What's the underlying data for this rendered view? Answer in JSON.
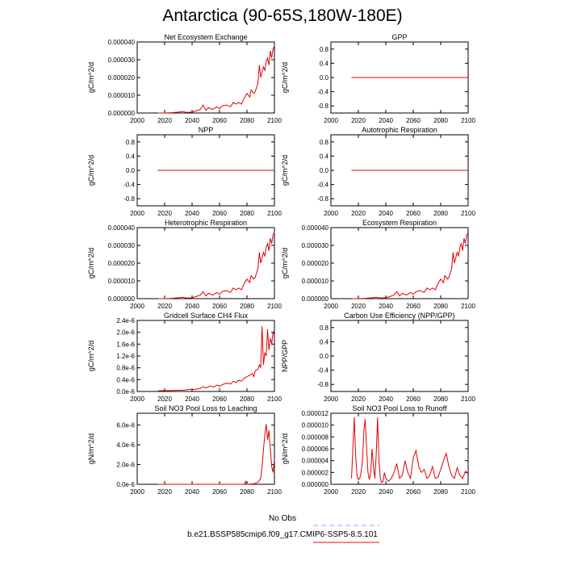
{
  "page_title": "Antarctica (90-65S,180W-180E)",
  "legend": {
    "entries": [
      {
        "label": "No Obs",
        "color": "#9999ff",
        "dash": true
      },
      {
        "label": "b.e21.BSSP585cmip6.f09_g17.CMIP6-SSP5-8.5.101",
        "color": "#ff0000",
        "dash": false
      }
    ]
  },
  "colors": {
    "series": "#e00000",
    "axis": "#000000"
  },
  "chart_data": [
    {
      "type": "line",
      "title": "Net Ecosystem Exchange",
      "ylabel": "gC/m^2/d",
      "xlim": [
        2000,
        2100
      ],
      "ylim": [
        0,
        4e-05
      ],
      "xticks": [
        2000,
        2020,
        2040,
        2060,
        2080,
        2100
      ],
      "yticks": [
        0,
        1e-05,
        2e-05,
        3e-05,
        4e-05
      ],
      "ytick_labels": [
        "0.000000",
        "0.000010",
        "0.000020",
        "0.000030",
        "0.000040"
      ],
      "series": [
        {
          "x": [
            2015,
            2020,
            2025,
            2030,
            2033,
            2036,
            2040,
            2043,
            2046,
            2048,
            2050,
            2052,
            2055,
            2058,
            2060,
            2062,
            2065,
            2068,
            2070,
            2072,
            2074,
            2076,
            2078,
            2080,
            2082,
            2083,
            2085,
            2086,
            2088,
            2089,
            2090,
            2091,
            2092,
            2093,
            2094,
            2095,
            2096,
            2097,
            2098,
            2099,
            2100
          ],
          "y": [
            0,
            0,
            2e-07,
            5e-07,
            8e-07,
            3e-07,
            5e-07,
            1.2e-06,
            2e-06,
            4.5e-06,
            1.5e-06,
            3e-06,
            2e-06,
            3.5e-06,
            2.5e-06,
            4e-06,
            4.5e-06,
            3.5e-06,
            6e-06,
            5e-06,
            6e-06,
            5e-06,
            8.5e-06,
            1.1e-05,
            9e-06,
            1.3e-05,
            1.1e-05,
            1.2e-05,
            1.7e-05,
            2.7e-05,
            2e-05,
            2.3e-05,
            2.6e-05,
            2.4e-05,
            2.9e-05,
            3.1e-05,
            2.7e-05,
            3.5e-05,
            3.1e-05,
            3.6e-05,
            3.8e-05
          ]
        }
      ]
    },
    {
      "type": "line",
      "title": "GPP",
      "ylabel": "gC/m^2/d",
      "xlim": [
        2000,
        2100
      ],
      "ylim": [
        -1,
        1
      ],
      "xticks": [
        2000,
        2020,
        2040,
        2060,
        2080,
        2100
      ],
      "yticks": [
        -0.8,
        -0.4,
        0,
        0.4,
        0.8
      ],
      "ytick_labels": [
        "-0.8",
        "-0.4",
        "0.0",
        "0.4",
        "0.8"
      ],
      "series": [
        {
          "x": [
            2015,
            2100
          ],
          "y": [
            0,
            0
          ]
        }
      ]
    },
    {
      "type": "line",
      "title": "NPP",
      "ylabel": "gC/m^2/d",
      "xlim": [
        2000,
        2100
      ],
      "ylim": [
        -1,
        1
      ],
      "xticks": [
        2000,
        2020,
        2040,
        2060,
        2080,
        2100
      ],
      "yticks": [
        -0.8,
        -0.4,
        0,
        0.4,
        0.8
      ],
      "ytick_labels": [
        "-0.8",
        "-0.4",
        "0.0",
        "0.4",
        "0.8"
      ],
      "series": [
        {
          "x": [
            2015,
            2100
          ],
          "y": [
            0,
            0
          ]
        }
      ]
    },
    {
      "type": "line",
      "title": "Autotrophic Respiration",
      "ylabel": "gC/m^2/d",
      "xlim": [
        2000,
        2100
      ],
      "ylim": [
        -1,
        1
      ],
      "xticks": [
        2000,
        2020,
        2040,
        2060,
        2080,
        2100
      ],
      "yticks": [
        -0.8,
        -0.4,
        0,
        0.4,
        0.8
      ],
      "ytick_labels": [
        "-0.8",
        "-0.4",
        "0.0",
        "0.4",
        "0.8"
      ],
      "series": [
        {
          "x": [
            2015,
            2100
          ],
          "y": [
            0,
            0
          ]
        }
      ]
    },
    {
      "type": "line",
      "title": "Heterotrophic Respiration",
      "ylabel": "gC/m^2/d",
      "xlim": [
        2000,
        2100
      ],
      "ylim": [
        0,
        4e-05
      ],
      "xticks": [
        2000,
        2020,
        2040,
        2060,
        2080,
        2100
      ],
      "yticks": [
        0,
        1e-05,
        2e-05,
        3e-05,
        4e-05
      ],
      "ytick_labels": [
        "0.000000",
        "0.000010",
        "0.000020",
        "0.000030",
        "0.000040"
      ],
      "series": [
        {
          "x": [
            2015,
            2020,
            2025,
            2030,
            2033,
            2036,
            2040,
            2043,
            2046,
            2048,
            2050,
            2052,
            2055,
            2058,
            2060,
            2062,
            2065,
            2068,
            2070,
            2072,
            2074,
            2076,
            2078,
            2080,
            2082,
            2083,
            2085,
            2086,
            2088,
            2089,
            2090,
            2091,
            2092,
            2093,
            2094,
            2095,
            2096,
            2097,
            2098,
            2099,
            2100
          ],
          "y": [
            0,
            0,
            2e-07,
            5e-07,
            8e-07,
            3e-07,
            5e-07,
            1.2e-06,
            2e-06,
            4e-06,
            1.5e-06,
            3e-06,
            2e-06,
            3.5e-06,
            2.5e-06,
            4e-06,
            4.5e-06,
            3.5e-06,
            6e-06,
            5e-06,
            6e-06,
            5e-06,
            8.5e-06,
            1.1e-05,
            9e-06,
            1.3e-05,
            1.1e-05,
            1.2e-05,
            1.7e-05,
            2.6e-05,
            2e-05,
            2.3e-05,
            2.6e-05,
            2.4e-05,
            2.9e-05,
            3.1e-05,
            2.7e-05,
            3.4e-05,
            3.1e-05,
            3.6e-05,
            3.7e-05
          ]
        }
      ]
    },
    {
      "type": "line",
      "title": "Ecosystem Respiration",
      "ylabel": "gC/m^2/d",
      "xlim": [
        2000,
        2100
      ],
      "ylim": [
        0,
        4e-05
      ],
      "xticks": [
        2000,
        2020,
        2040,
        2060,
        2080,
        2100
      ],
      "yticks": [
        0,
        1e-05,
        2e-05,
        3e-05,
        4e-05
      ],
      "ytick_labels": [
        "0.000000",
        "0.000010",
        "0.000020",
        "0.000030",
        "0.000040"
      ],
      "series": [
        {
          "x": [
            2015,
            2020,
            2025,
            2030,
            2033,
            2036,
            2040,
            2043,
            2046,
            2048,
            2050,
            2052,
            2055,
            2058,
            2060,
            2062,
            2065,
            2068,
            2070,
            2072,
            2074,
            2076,
            2078,
            2080,
            2082,
            2083,
            2085,
            2086,
            2088,
            2089,
            2090,
            2091,
            2092,
            2093,
            2094,
            2095,
            2096,
            2097,
            2098,
            2099,
            2100
          ],
          "y": [
            0,
            0,
            2e-07,
            5e-07,
            8e-07,
            3e-07,
            5e-07,
            1.2e-06,
            2e-06,
            4e-06,
            1.5e-06,
            3e-06,
            2e-06,
            3.5e-06,
            2.5e-06,
            4e-06,
            4.5e-06,
            3.5e-06,
            6e-06,
            5e-06,
            6e-06,
            5e-06,
            8.5e-06,
            1.1e-05,
            9e-06,
            1.3e-05,
            1.1e-05,
            1.2e-05,
            1.7e-05,
            2.6e-05,
            2e-05,
            2.3e-05,
            2.6e-05,
            2.4e-05,
            2.9e-05,
            3.1e-05,
            2.7e-05,
            3.4e-05,
            3.1e-05,
            3.6e-05,
            3.7e-05
          ]
        }
      ]
    },
    {
      "type": "line",
      "title": "Gridcell Surface CH4 Flux",
      "ylabel": "gC/m^2/d",
      "xlim": [
        2000,
        2100
      ],
      "ylim": [
        0,
        2.4e-06
      ],
      "xticks": [
        2000,
        2020,
        2040,
        2060,
        2080,
        2100
      ],
      "yticks": [
        0,
        4e-07,
        8e-07,
        1.2e-06,
        1.6e-06,
        2e-06,
        2.4e-06
      ],
      "ytick_labels": [
        "0.0e-6",
        "0.4e-6",
        "0.8e-6",
        "1.2e-6",
        "1.6e-6",
        "2.0e-6",
        "2.4e-6"
      ],
      "series": [
        {
          "x": [
            2015,
            2020,
            2025,
            2030,
            2035,
            2038,
            2040,
            2043,
            2046,
            2048,
            2050,
            2053,
            2056,
            2058,
            2060,
            2063,
            2066,
            2068,
            2070,
            2072,
            2074,
            2076,
            2078,
            2080,
            2082,
            2084,
            2085,
            2086,
            2088,
            2089,
            2090,
            2091,
            2092,
            2093,
            2094,
            2095,
            2096,
            2097,
            2098,
            2099,
            2100
          ],
          "y": [
            2e-08,
            3e-08,
            3e-08,
            4e-08,
            5e-08,
            7e-08,
            6e-08,
            8e-08,
            1e-07,
            1.6e-07,
            1.2e-07,
            1.8e-07,
            1.5e-07,
            2.2e-07,
            1.8e-07,
            2.5e-07,
            2.8e-07,
            2.5e-07,
            3.5e-07,
            3e-07,
            3.8e-07,
            3.5e-07,
            4.5e-07,
            5e-07,
            5.5e-07,
            6e-07,
            5e-07,
            7e-07,
            7.5e-07,
            9e-07,
            8e-07,
            2.2e-06,
            9e-07,
            1.3e-06,
            1.2e-06,
            2.1e-06,
            1.4e-06,
            1.8e-06,
            1.6e-06,
            2e-06,
            1.9e-06
          ]
        }
      ]
    },
    {
      "type": "line",
      "title": "Carbon Use Efficiency (NPP/GPP)",
      "ylabel": "NPP/GPP",
      "xlim": [
        2000,
        2100
      ],
      "ylim": [
        -1,
        1
      ],
      "xticks": [
        2000,
        2020,
        2040,
        2060,
        2080,
        2100
      ],
      "yticks": [
        -0.8,
        -0.4,
        0,
        0.4,
        0.8
      ],
      "ytick_labels": [
        "-0.8",
        "-0.4",
        "0.0",
        "0.4",
        "0.8"
      ],
      "series": []
    },
    {
      "type": "line",
      "title": "Soil NO3 Pool Loss to Leaching",
      "ylabel": "gN/m^2/d",
      "xlim": [
        2000,
        2100
      ],
      "ylim": [
        0,
        7.2e-06
      ],
      "xticks": [
        2000,
        2020,
        2040,
        2060,
        2080,
        2100
      ],
      "yticks": [
        0,
        2e-06,
        4e-06,
        6e-06
      ],
      "ytick_labels": [
        "0.0e-6",
        "2.0e-6",
        "4.0e-6",
        "6.0e-6"
      ],
      "series": [
        {
          "x": [
            2015,
            2030,
            2050,
            2070,
            2078,
            2079,
            2080,
            2085,
            2088,
            2090,
            2091,
            2092,
            2093,
            2094,
            2095,
            2096,
            2097,
            2098,
            2099,
            2100
          ],
          "y": [
            0,
            0,
            0,
            0,
            0,
            3e-07,
            0,
            5e-08,
            2e-07,
            6e-07,
            1.8e-06,
            3.5e-06,
            5e-06,
            6.1e-06,
            4.5e-06,
            5.5e-06,
            3.5e-06,
            1.8e-06,
            1.2e-06,
            2.5e-06
          ]
        }
      ]
    },
    {
      "type": "line",
      "title": "Soil NO3 Pool Loss to Runoff",
      "ylabel": "gN/m^2/d",
      "xlim": [
        2000,
        2100
      ],
      "ylim": [
        0,
        1.2e-05
      ],
      "xticks": [
        2000,
        2020,
        2040,
        2060,
        2080,
        2100
      ],
      "yticks": [
        0,
        2e-06,
        4e-06,
        6e-06,
        8e-06,
        1e-05,
        1.2e-05
      ],
      "ytick_labels": [
        "0.000000",
        "0.000002",
        "0.000004",
        "0.000006",
        "0.000008",
        "0.000010",
        "0.000012"
      ],
      "series": [
        {
          "x": [
            2015,
            2016,
            2017,
            2018,
            2019,
            2020,
            2021,
            2022,
            2023,
            2024,
            2025,
            2026,
            2027,
            2028,
            2029,
            2030,
            2031,
            2032,
            2033,
            2034,
            2035,
            2036,
            2037,
            2038,
            2039,
            2040,
            2042,
            2044,
            2046,
            2048,
            2050,
            2052,
            2054,
            2056,
            2058,
            2060,
            2062,
            2064,
            2066,
            2068,
            2070,
            2072,
            2074,
            2076,
            2078,
            2080,
            2082,
            2084,
            2086,
            2088,
            2090,
            2092,
            2094,
            2096,
            2098,
            2100
          ],
          "y": [
            1e-06,
            6e-06,
            1.13e-05,
            5e-06,
            1.5e-06,
            8e-07,
            1e-06,
            2e-06,
            4e-06,
            9e-06,
            1.1e-05,
            6e-06,
            2e-06,
            8e-07,
            2e-06,
            6e-06,
            3e-06,
            1e-06,
            5e-06,
            1.13e-05,
            4e-06,
            1e-06,
            3e-07,
            5e-07,
            2e-06,
            1e-06,
            5e-07,
            1e-06,
            2e-06,
            3.5e-06,
            1e-06,
            1.5e-06,
            4e-06,
            2e-06,
            1e-06,
            4.5e-06,
            5.7e-06,
            3e-06,
            2e-06,
            2.5e-06,
            1e-06,
            1.5e-06,
            3e-06,
            1e-06,
            1.2e-06,
            2.5e-06,
            4e-06,
            5.2e-06,
            3e-06,
            1.5e-06,
            1e-06,
            2.8e-06,
            1.5e-06,
            1e-06,
            2.2e-06,
            1.8e-06
          ]
        }
      ]
    }
  ]
}
